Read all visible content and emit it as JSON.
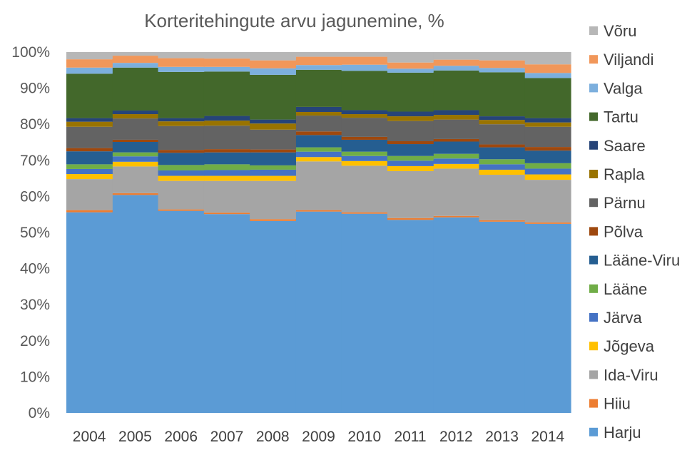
{
  "chart_data": {
    "type": "area",
    "stacked": true,
    "title": "Korteritehingute arvu jagunemine, %",
    "xlabel": "",
    "ylabel": "",
    "ylim": [
      0,
      100
    ],
    "yticks": [
      "0%",
      "10%",
      "20%",
      "30%",
      "40%",
      "50%",
      "60%",
      "70%",
      "80%",
      "90%",
      "100%"
    ],
    "categories": [
      "2004",
      "2005",
      "2006",
      "2007",
      "2008",
      "2009",
      "2010",
      "2011",
      "2012",
      "2013",
      "2014"
    ],
    "legend_position": "right",
    "series": [
      {
        "name": "Harju",
        "color": "#5b9bd5",
        "values": [
          55.6,
          60.4,
          56.0,
          55.1,
          53.2,
          55.8,
          55.2,
          53.5,
          54.2,
          53.0,
          52.4
        ]
      },
      {
        "name": "Hiiu",
        "color": "#ed7d31",
        "values": [
          0.6,
          0.5,
          0.4,
          0.4,
          0.5,
          0.4,
          0.4,
          0.5,
          0.4,
          0.4,
          0.4
        ]
      },
      {
        "name": "Ida-Viru",
        "color": "#a5a5a5",
        "values": [
          8.6,
          7.4,
          7.9,
          8.8,
          10.6,
          13.5,
          12.9,
          13.0,
          13.1,
          12.6,
          11.8
        ]
      },
      {
        "name": "Jõgeva",
        "color": "#ffc000",
        "values": [
          1.4,
          1.3,
          1.4,
          1.4,
          1.4,
          1.2,
          1.3,
          1.4,
          1.3,
          1.4,
          1.5
        ]
      },
      {
        "name": "Järva",
        "color": "#4472c4",
        "values": [
          1.4,
          1.5,
          1.5,
          1.6,
          1.7,
          1.5,
          1.4,
          1.5,
          1.5,
          1.5,
          1.6
        ]
      },
      {
        "name": "Lääne",
        "color": "#70ad47",
        "values": [
          1.3,
          1.1,
          1.5,
          1.6,
          1.2,
          1.2,
          1.2,
          1.3,
          1.3,
          1.4,
          1.5
        ]
      },
      {
        "name": "Lääne-Viru",
        "color": "#255e91",
        "values": [
          3.6,
          2.9,
          3.4,
          3.3,
          3.6,
          3.4,
          3.3,
          3.3,
          3.4,
          3.3,
          3.5
        ]
      },
      {
        "name": "Põlva",
        "color": "#9e480e",
        "values": [
          0.9,
          0.6,
          0.8,
          0.9,
          0.8,
          1.0,
          0.8,
          0.8,
          0.7,
          0.8,
          1.0
        ]
      },
      {
        "name": "Pärnu",
        "color": "#636363",
        "values": [
          5.9,
          5.9,
          6.6,
          6.5,
          5.5,
          4.4,
          5.3,
          5.6,
          5.4,
          5.6,
          5.6
        ]
      },
      {
        "name": "Rapla",
        "color": "#997300",
        "values": [
          1.4,
          1.2,
          1.3,
          1.4,
          1.7,
          1.0,
          1.0,
          1.3,
          1.3,
          1.2,
          1.2
        ]
      },
      {
        "name": "Saare",
        "color": "#264478",
        "values": [
          1.0,
          1.0,
          0.9,
          1.3,
          1.1,
          1.4,
          1.1,
          1.3,
          1.3,
          1.0,
          1.2
        ]
      },
      {
        "name": "Tartu",
        "color": "#43682b",
        "values": [
          12.3,
          11.9,
          12.8,
          12.3,
          12.4,
          10.3,
          10.9,
          10.8,
          11.0,
          12.2,
          11.1
        ]
      },
      {
        "name": "Valga",
        "color": "#7cafdd",
        "values": [
          1.7,
          1.3,
          1.4,
          1.3,
          1.8,
          1.3,
          1.7,
          1.1,
          1.3,
          1.2,
          1.4
        ]
      },
      {
        "name": "Viljandi",
        "color": "#f1975a",
        "values": [
          2.3,
          2.0,
          2.4,
          2.3,
          2.2,
          2.3,
          2.2,
          1.7,
          1.7,
          2.1,
          2.4
        ]
      },
      {
        "name": "Võru",
        "color": "#b7b7b7",
        "values": [
          2.0,
          1.0,
          1.7,
          1.8,
          2.3,
          2.3,
          2.4,
          2.9,
          2.1,
          2.3,
          3.4
        ]
      }
    ]
  }
}
